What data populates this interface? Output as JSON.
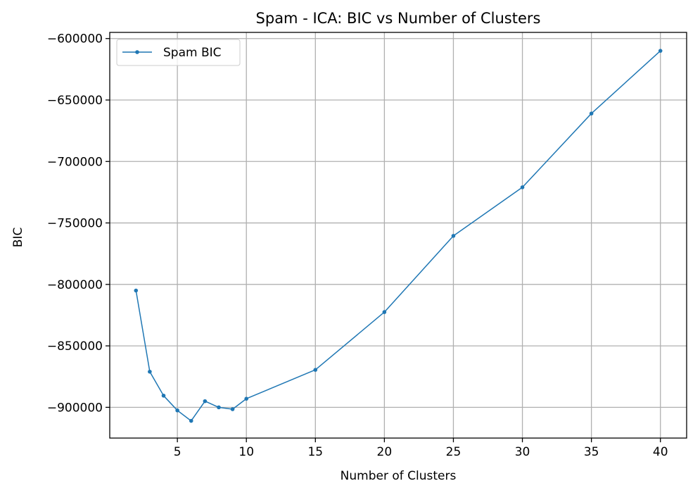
{
  "chart_data": {
    "type": "line",
    "title": "Spam - ICA: BIC vs Number of Clusters",
    "xlabel": "Number of Clusters",
    "ylabel": "BIC",
    "xlim": [
      0.1,
      41.9
    ],
    "ylim": [
      -925000,
      -595000
    ],
    "xticks": [
      5,
      10,
      15,
      20,
      25,
      30,
      35,
      40
    ],
    "xtick_labels": [
      "5",
      "10",
      "15",
      "20",
      "25",
      "30",
      "35",
      "40"
    ],
    "yticks": [
      -900000,
      -850000,
      -800000,
      -750000,
      -700000,
      -650000,
      -600000
    ],
    "ytick_labels": [
      "−900000",
      "−850000",
      "−800000",
      "−750000",
      "−700000",
      "−650000",
      "−600000"
    ],
    "grid": true,
    "legend_position": "top-left",
    "series": [
      {
        "name": "Spam BIC",
        "color": "#1f77b4",
        "marker": "circle",
        "x": [
          2,
          3,
          4,
          5,
          6,
          7,
          8,
          9,
          10,
          15,
          20,
          25,
          30,
          35,
          40
        ],
        "y": [
          -805000,
          -871000,
          -890500,
          -902500,
          -911000,
          -895000,
          -900000,
          -901500,
          -893000,
          -869500,
          -822500,
          -760500,
          -721000,
          -661000,
          -610000
        ]
      }
    ]
  }
}
